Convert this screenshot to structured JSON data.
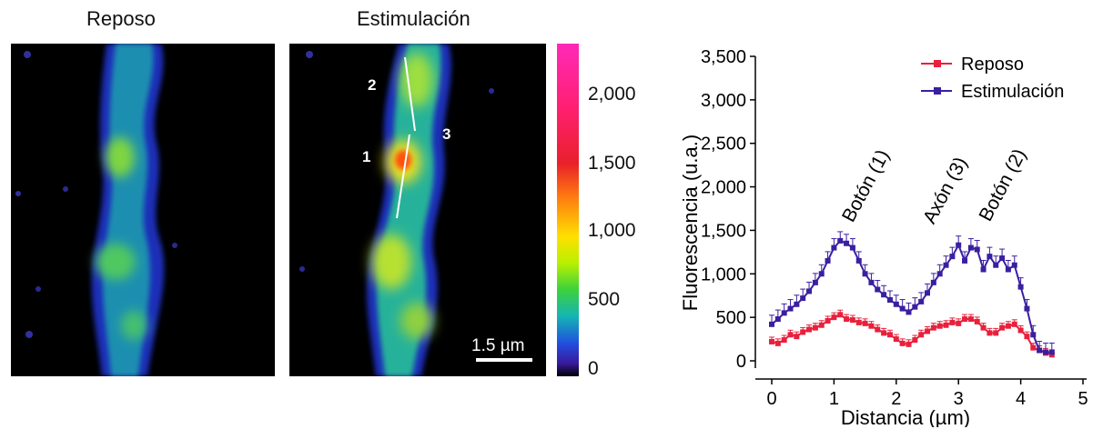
{
  "panels": {
    "left_title": "Reposo",
    "right_title": "Estimulación",
    "scale_bar": "1.5 µm",
    "point_labels": [
      "2",
      "3",
      "1"
    ]
  },
  "colorbar": {
    "ticks": [
      "2,000",
      "1,500",
      "1,000",
      "500",
      "0"
    ]
  },
  "chart_data": {
    "type": "line",
    "xlabel": "Distancia (µm)",
    "ylabel": "Fluorescencia (u.a.)",
    "xlim": [
      0,
      5
    ],
    "ylim": [
      0,
      3500
    ],
    "xticks": [
      0,
      1,
      2,
      3,
      4,
      5
    ],
    "yticks": [
      0,
      500,
      1000,
      1500,
      2000,
      2500,
      3000,
      3500
    ],
    "ytick_labels": [
      "0",
      "500",
      "1,000",
      "1,500",
      "2,000",
      "2,500",
      "3,000",
      "3,500"
    ],
    "legend_position": "top-right",
    "annotations": [
      "Botón (1)",
      "Axón (3)",
      "Botón (2)"
    ],
    "series": [
      {
        "name": "Reposo",
        "color": "#e8203c",
        "x": [
          0,
          0.1,
          0.2,
          0.3,
          0.4,
          0.5,
          0.6,
          0.7,
          0.8,
          0.9,
          1.0,
          1.1,
          1.2,
          1.3,
          1.4,
          1.5,
          1.6,
          1.7,
          1.8,
          1.9,
          2.0,
          2.1,
          2.2,
          2.3,
          2.4,
          2.5,
          2.6,
          2.7,
          2.8,
          2.9,
          3.0,
          3.1,
          3.2,
          3.3,
          3.4,
          3.5,
          3.6,
          3.7,
          3.8,
          3.9,
          4.0,
          4.1,
          4.2,
          4.3,
          4.4,
          4.5
        ],
        "values": [
          220,
          200,
          240,
          300,
          280,
          330,
          360,
          380,
          410,
          460,
          500,
          530,
          480,
          470,
          440,
          430,
          400,
          360,
          320,
          300,
          250,
          200,
          190,
          240,
          300,
          340,
          380,
          400,
          410,
          440,
          430,
          480,
          480,
          450,
          380,
          320,
          320,
          380,
          400,
          420,
          350,
          280,
          150,
          120,
          90,
          70
        ]
      },
      {
        "name": "Estimulación",
        "color": "#3a1fa0",
        "x": [
          0,
          0.1,
          0.2,
          0.3,
          0.4,
          0.5,
          0.6,
          0.7,
          0.8,
          0.9,
          1.0,
          1.1,
          1.2,
          1.3,
          1.4,
          1.5,
          1.6,
          1.7,
          1.8,
          1.9,
          2.0,
          2.1,
          2.2,
          2.3,
          2.4,
          2.5,
          2.6,
          2.7,
          2.8,
          2.9,
          3.0,
          3.1,
          3.2,
          3.3,
          3.4,
          3.5,
          3.6,
          3.7,
          3.8,
          3.9,
          4.0,
          4.1,
          4.2,
          4.3,
          4.4,
          4.5
        ],
        "values": [
          420,
          480,
          550,
          600,
          650,
          720,
          800,
          900,
          1000,
          1150,
          1300,
          1380,
          1350,
          1300,
          1150,
          1000,
          900,
          820,
          760,
          700,
          650,
          600,
          560,
          620,
          680,
          780,
          900,
          1000,
          1100,
          1200,
          1330,
          1150,
          1300,
          1280,
          1050,
          1200,
          1100,
          1180,
          1050,
          1100,
          850,
          600,
          300,
          120,
          100,
          100
        ]
      }
    ]
  }
}
